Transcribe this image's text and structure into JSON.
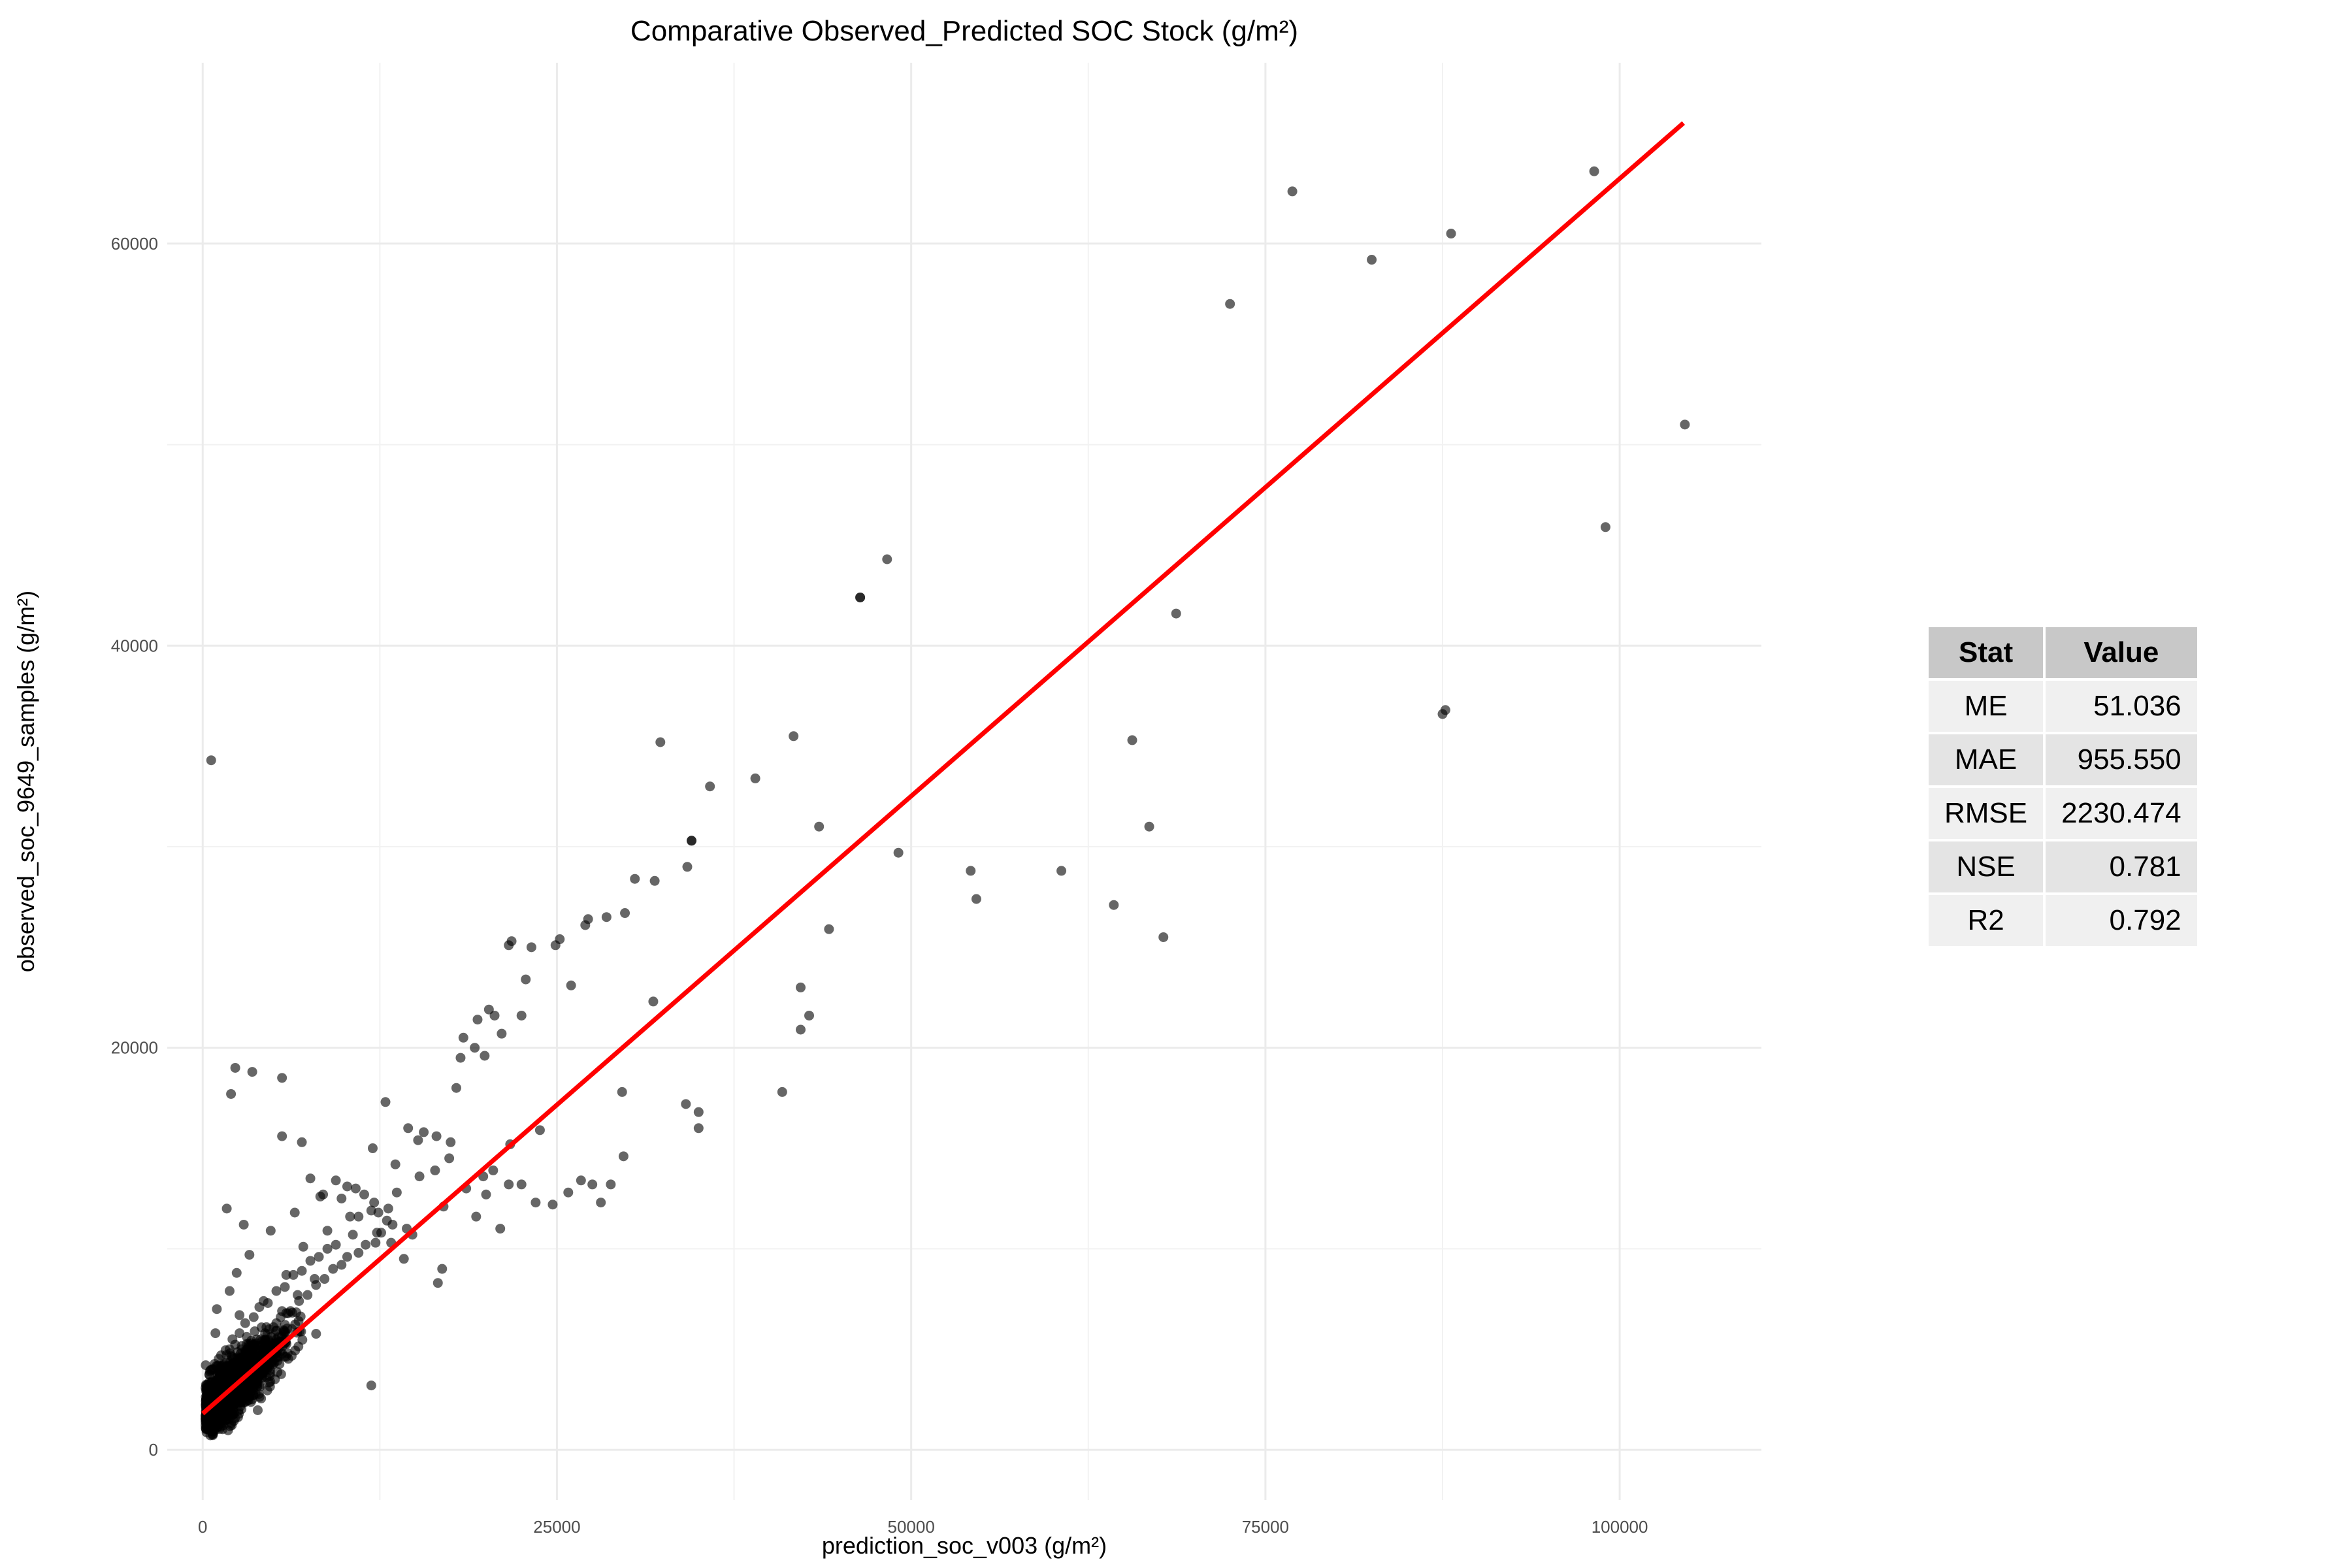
{
  "chart_data": {
    "type": "scatter",
    "title": "Comparative Observed_Predicted SOC Stock (g/m²)",
    "xlabel": "prediction_soc_v003 (g/m²)",
    "ylabel": "observed_soc_9649_samples (g/m²)",
    "xlim": [
      -2500,
      110000
    ],
    "ylim": [
      -2500,
      69000
    ],
    "xticks": [
      0,
      25000,
      50000,
      75000,
      100000
    ],
    "yticks": [
      0,
      20000,
      40000,
      60000
    ],
    "grid": true,
    "point_color": "#000000",
    "point_opacity": 0.6,
    "line_color": "#ff0000",
    "fit_line": {
      "x": [
        0,
        104500
      ],
      "y": [
        1800,
        66000
      ]
    },
    "points": {
      "x": [
        600,
        32300,
        41700,
        48300,
        46400,
        46400,
        49100,
        54200,
        54600,
        60600,
        64300,
        65600,
        66800,
        67800,
        68700,
        72500,
        76900,
        82500,
        88100,
        87700,
        87500,
        98200,
        99000,
        104600,
        35800,
        39000,
        43500,
        44200,
        34500,
        34500,
        34200,
        35000,
        35000,
        34100,
        42200,
        42200,
        42800,
        40900,
        31900,
        30500,
        31800,
        29600,
        29800,
        28500,
        27200,
        27000,
        26000,
        25200,
        24900,
        22800,
        23200,
        21600,
        21800,
        22500,
        20200,
        20600,
        21100,
        21700,
        19900,
        19400,
        19200,
        18400,
        18200,
        17900,
        17500,
        16500,
        15600,
        15200,
        14500,
        13600,
        12900,
        12000,
        26700,
        27500,
        24700,
        23800,
        22500,
        2300,
        3500,
        5600,
        5600,
        7000,
        2000,
        1700,
        2900,
        7600,
        8500,
        9400,
        11400,
        12400,
        11000,
        10800,
        9800,
        10200,
        13100,
        14400,
        15300,
        16400,
        17400,
        18600,
        19800,
        20500,
        20000,
        21600,
        23500,
        25800,
        28100,
        28800,
        29700,
        19300,
        21000,
        17000,
        16600,
        16900,
        14200,
        13300,
        13000,
        12300,
        11900,
        3000,
        1800,
        1200,
        800,
        600,
        400,
        1500,
        2500,
        4200,
        6000,
        1000,
        2200,
        3200,
        4400,
        5500,
        6800,
        8000,
        9200,
        10200,
        11500,
        12600,
        13400,
        700,
        1600,
        2800,
        3800,
        5000,
        6200,
        7400,
        8600,
        9800,
        11000,
        12200,
        1100,
        1900,
        2600,
        3600,
        4600,
        5800,
        7000,
        8200,
        9400,
        10600,
        500,
        1300,
        2100,
        3000,
        4000,
        5200,
        6400,
        7600,
        8800,
        900,
        1700,
        2500,
        3400,
        4500,
        5600,
        6700,
        7900,
        300,
        1000,
        1800,
        2700,
        3600,
        4700,
        5900,
        200,
        700,
        1400,
        2200,
        3100,
        4100,
        5200,
        400,
        1100,
        1900,
        2800,
        3800,
        600,
        1300,
        2200,
        3200,
        800,
        1600,
        2500,
        1000,
        1900,
        2400,
        3300,
        4800,
        6500,
        8300,
        11900,
        14800,
        900,
        2600,
        4300,
        5900,
        7100,
        8800,
        10400,
        12100,
        13700
      ],
      "y": [
        34300,
        35200,
        35500,
        44300,
        42400,
        42400,
        29700,
        28800,
        27400,
        28800,
        27100,
        35300,
        31000,
        25500,
        41600,
        57000,
        62600,
        59200,
        60500,
        36800,
        36600,
        63600,
        45900,
        51000,
        33000,
        33400,
        31000,
        25900,
        30300,
        30300,
        29000,
        16800,
        16000,
        17200,
        23000,
        20900,
        21600,
        17800,
        28300,
        28400,
        22300,
        17800,
        26700,
        26500,
        26400,
        26100,
        23100,
        25400,
        25100,
        23400,
        25000,
        25100,
        25300,
        21600,
        21900,
        21600,
        20700,
        15200,
        19600,
        21400,
        20000,
        20500,
        19500,
        18000,
        15300,
        15600,
        15800,
        15400,
        16000,
        14200,
        17300,
        15000,
        13400,
        13200,
        12200,
        15900,
        13200,
        19000,
        18800,
        18500,
        15600,
        15300,
        17700,
        12000,
        11200,
        13500,
        12700,
        13400,
        12700,
        11800,
        11600,
        13000,
        12500,
        13100,
        12000,
        11000,
        13600,
        13900,
        14500,
        13000,
        13600,
        13900,
        12700,
        13200,
        12300,
        12800,
        12300,
        13200,
        14600,
        11600,
        11000,
        12100,
        8300,
        9000,
        9500,
        10300,
        11400,
        10800,
        3200,
        4800,
        3600,
        2700,
        2100,
        1500,
        1000,
        2300,
        2600,
        3800,
        4800,
        3400,
        4200,
        5000,
        5800,
        6600,
        7400,
        8200,
        9000,
        9600,
        10200,
        10800,
        11200,
        2800,
        3600,
        4500,
        5300,
        6100,
        6900,
        7700,
        8500,
        9200,
        9800,
        10300,
        4200,
        5000,
        5800,
        6600,
        7300,
        8100,
        8900,
        9600,
        10200,
        10700,
        3900,
        4700,
        5500,
        6300,
        7100,
        7900,
        8700,
        9400,
        10000,
        2900,
        3700,
        4500,
        5300,
        6100,
        6900,
        7700,
        8500,
        2200,
        2900,
        3600,
        4400,
        5200,
        6000,
        6800,
        1700,
        2400,
        3100,
        3900,
        4700,
        5500,
        6300,
        1400,
        2100,
        2800,
        3600,
        4400,
        1200,
        1900,
        2600,
        3400,
        1000,
        1700,
        2400,
        7000,
        7900,
        8800,
        9700,
        10900,
        11800,
        12600,
        11900,
        10700,
        5800,
        6700,
        7400,
        8700,
        10100,
        10900,
        11600,
        12300,
        12800
      ]
    }
  },
  "stats_table": {
    "headers": {
      "stat": "Stat",
      "value": "Value"
    },
    "rows": [
      {
        "stat": "ME",
        "value": "51.036"
      },
      {
        "stat": "MAE",
        "value": "955.550"
      },
      {
        "stat": "RMSE",
        "value": "2230.474"
      },
      {
        "stat": "NSE",
        "value": "0.781"
      },
      {
        "stat": "R2",
        "value": "0.792"
      }
    ]
  }
}
